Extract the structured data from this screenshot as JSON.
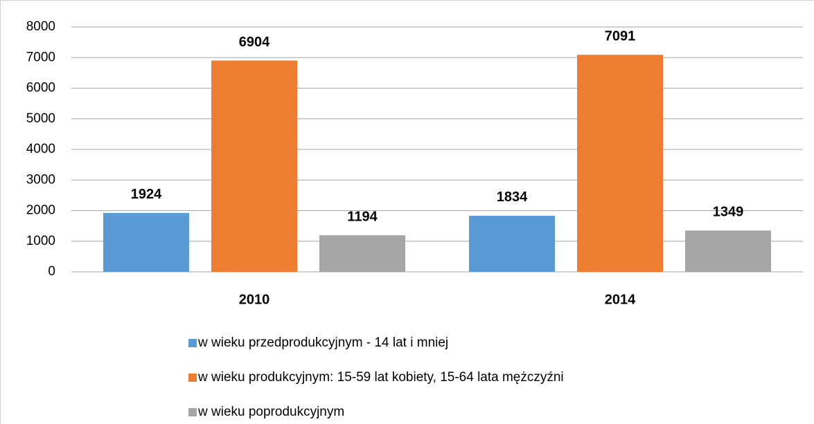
{
  "chart_data": {
    "type": "bar",
    "categories": [
      "2010",
      "2014"
    ],
    "series": [
      {
        "name": "w wieku przedprodukcyjnym - 14 lat i mniej",
        "color": "#5b9bd5",
        "values": [
          1924,
          1834
        ]
      },
      {
        "name": "w wieku produkcyjnym: 15-59 lat kobiety, 15-64 lata mężczyźni",
        "color": "#ed7d31",
        "values": [
          6904,
          7091
        ]
      },
      {
        "name": "w wieku poprodukcyjnym",
        "color": "#a5a5a5",
        "values": [
          1194,
          1349
        ]
      }
    ],
    "ylim": [
      0,
      8000
    ],
    "yticks": [
      0,
      1000,
      2000,
      3000,
      4000,
      5000,
      6000,
      7000,
      8000
    ],
    "grid": true,
    "legend": "bottom"
  }
}
